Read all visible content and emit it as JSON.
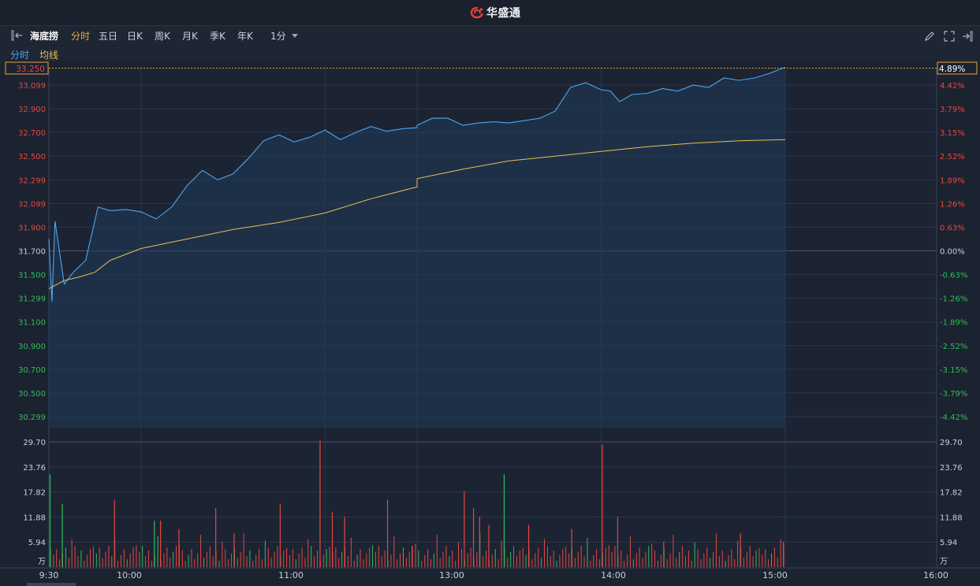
{
  "app": {
    "brand_name": "华盛通"
  },
  "toolbar": {
    "stock_name": "海底捞",
    "periods": [
      "分时",
      "五日",
      "日K",
      "周K",
      "月K",
      "季K",
      "年K"
    ],
    "active_period": "分时",
    "interval": "1分"
  },
  "legend": {
    "price_label": "分时",
    "avg_label": "均线"
  },
  "colors": {
    "price_line": "#4ea6f0",
    "avg_line": "#e8c054",
    "up": "#e8463f",
    "down": "#2fbf5a",
    "bg": "#1b2230",
    "grid": "#2c3647",
    "axis_text": "#c9d1dc"
  },
  "chart_data": {
    "type": "line",
    "prev_close": 31.7,
    "price_axis_labels": [
      "33.099",
      "32.900",
      "32.700",
      "32.500",
      "32.299",
      "32.099",
      "31.900",
      "31.700",
      "31.500",
      "31.299",
      "31.100",
      "30.900",
      "30.700",
      "30.500",
      "30.299"
    ],
    "percent_axis_labels": [
      "4.42%",
      "3.79%",
      "3.15%",
      "2.52%",
      "1.89%",
      "1.26%",
      "0.63%",
      "0.00%",
      "-0.63%",
      "-1.26%",
      "-1.89%",
      "-2.52%",
      "-3.15%",
      "-3.79%",
      "-4.42%"
    ],
    "current_price": "33.250",
    "current_change": "4.89%",
    "price_range": [
      30.3,
      33.1
    ],
    "volume_axis_labels": [
      "29.70",
      "23.76",
      "17.82",
      "11.88",
      "5.94"
    ],
    "volume_unit": "万",
    "volume_max": 29.7,
    "time_labels": [
      "9:30",
      "10:00",
      "11:00",
      "13:00",
      "14:00",
      "15:00",
      "16:00"
    ],
    "series": [
      {
        "name": "分时",
        "x": [
          "09:30",
          "09:31",
          "09:32",
          "09:35",
          "09:38",
          "09:42",
          "09:46",
          "09:50",
          "09:55",
          "10:00",
          "10:05",
          "10:10",
          "10:15",
          "10:20",
          "10:25",
          "10:30",
          "10:35",
          "10:40",
          "10:45",
          "10:50",
          "10:55",
          "11:00",
          "11:05",
          "11:10",
          "11:15",
          "11:20",
          "11:25",
          "11:30",
          "13:00",
          "13:05",
          "13:10",
          "13:15",
          "13:20",
          "13:25",
          "13:30",
          "13:35",
          "13:40",
          "13:45",
          "13:50",
          "13:55",
          "14:00",
          "14:03",
          "14:06",
          "14:10",
          "14:15",
          "14:20",
          "14:25",
          "14:30",
          "14:35",
          "14:40",
          "14:45",
          "14:50",
          "14:55",
          "15:00"
        ],
        "values": [
          31.8,
          31.27,
          31.95,
          31.42,
          31.52,
          31.62,
          32.07,
          32.04,
          32.05,
          32.03,
          31.97,
          32.07,
          32.25,
          32.38,
          32.3,
          32.35,
          32.48,
          32.63,
          32.68,
          32.62,
          32.66,
          32.72,
          32.64,
          32.7,
          32.75,
          32.71,
          32.73,
          32.74,
          32.76,
          32.82,
          32.82,
          32.76,
          32.78,
          32.79,
          32.78,
          32.8,
          32.82,
          32.88,
          33.08,
          33.12,
          33.06,
          33.05,
          32.96,
          33.02,
          33.03,
          33.07,
          33.05,
          33.1,
          33.08,
          33.16,
          33.14,
          33.16,
          33.2,
          33.25
        ]
      },
      {
        "name": "均线",
        "x": [
          "09:30",
          "09:35",
          "09:40",
          "09:45",
          "09:50",
          "10:00",
          "10:15",
          "10:30",
          "10:45",
          "11:00",
          "11:15",
          "11:30",
          "13:00",
          "13:15",
          "13:30",
          "13:45",
          "14:00",
          "14:15",
          "14:30",
          "14:45",
          "15:00"
        ],
        "values": [
          31.38,
          31.45,
          31.48,
          31.52,
          31.62,
          31.72,
          31.8,
          31.88,
          31.94,
          32.02,
          32.14,
          32.24,
          32.31,
          32.39,
          32.46,
          32.5,
          32.54,
          32.58,
          32.61,
          32.63,
          32.64
        ]
      },
      {
        "name": "成交量",
        "x": [
          "09:30",
          "09:34",
          "09:51",
          "10:06",
          "10:24",
          "10:30",
          "10:45",
          "10:58",
          "11:02",
          "11:06",
          "11:20",
          "11:34",
          "11:42",
          "12:58",
          "13:15",
          "13:18",
          "13:20",
          "13:23",
          "13:28",
          "13:36",
          "13:50",
          "14:00",
          "14:05",
          "14:20",
          "14:45",
          "14:59"
        ],
        "values": [
          22,
          15,
          16,
          11,
          14,
          8,
          15,
          30,
          13,
          12,
          16,
          11,
          9,
          5,
          18,
          14,
          12,
          10,
          22,
          10,
          9,
          29,
          12,
          6,
          8,
          6
        ]
      }
    ]
  }
}
